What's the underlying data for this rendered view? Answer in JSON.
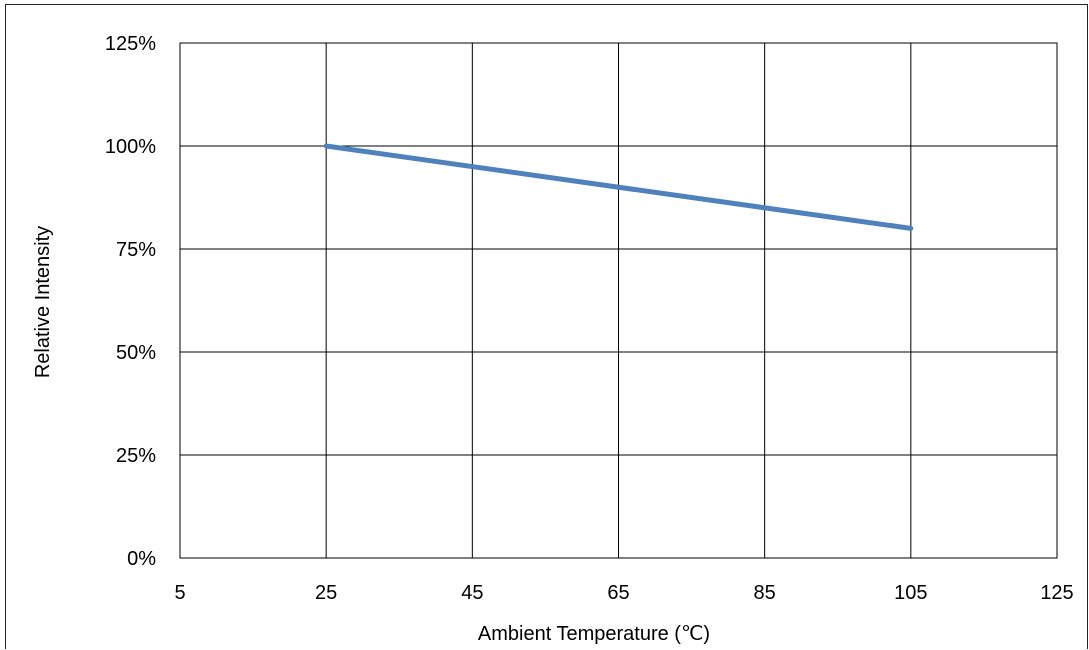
{
  "chart_data": {
    "type": "line",
    "title": "",
    "xlabel": "Ambient Temperature (℃)",
    "ylabel": "Relative Intensity",
    "xlim": [
      5,
      125
    ],
    "ylim": [
      0,
      125
    ],
    "x_ticks": [
      5,
      25,
      45,
      65,
      85,
      105,
      125
    ],
    "y_ticks": [
      0,
      25,
      50,
      75,
      100,
      125
    ],
    "y_tick_labels": [
      "0%",
      "25%",
      "50%",
      "75%",
      "100%",
      "125%"
    ],
    "grid": true,
    "series": [
      {
        "x": [
          25,
          105
        ],
        "y": [
          100,
          80
        ],
        "color": "#4f81bd"
      }
    ]
  }
}
